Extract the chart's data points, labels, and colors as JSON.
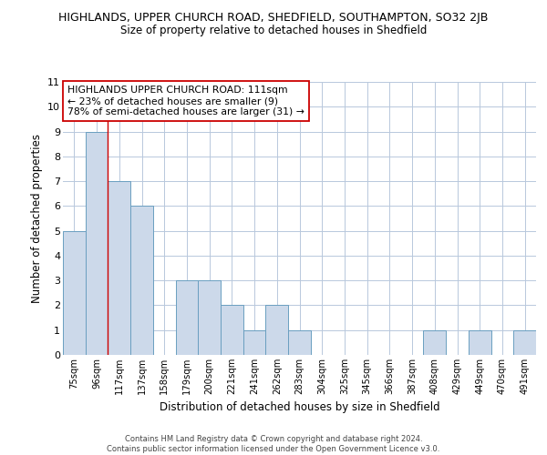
{
  "title_line1": "HIGHLANDS, UPPER CHURCH ROAD, SHEDFIELD, SOUTHAMPTON, SO32 2JB",
  "title_line2": "Size of property relative to detached houses in Shedfield",
  "xlabel": "Distribution of detached houses by size in Shedfield",
  "ylabel": "Number of detached properties",
  "categories": [
    "75sqm",
    "96sqm",
    "117sqm",
    "137sqm",
    "158sqm",
    "179sqm",
    "200sqm",
    "221sqm",
    "241sqm",
    "262sqm",
    "283sqm",
    "304sqm",
    "325sqm",
    "345sqm",
    "366sqm",
    "387sqm",
    "408sqm",
    "429sqm",
    "449sqm",
    "470sqm",
    "491sqm"
  ],
  "values": [
    5,
    9,
    7,
    6,
    0,
    3,
    3,
    2,
    1,
    2,
    1,
    0,
    0,
    0,
    0,
    0,
    1,
    0,
    1,
    0,
    1
  ],
  "bar_color": "#ccd9ea",
  "bar_edge_color": "#6a9fc0",
  "ylim": [
    0,
    11
  ],
  "yticks": [
    0,
    1,
    2,
    3,
    4,
    5,
    6,
    7,
    8,
    9,
    10,
    11
  ],
  "red_line_index": 2,
  "annotation_text": "HIGHLANDS UPPER CHURCH ROAD: 111sqm\n← 23% of detached houses are smaller (9)\n78% of semi-detached houses are larger (31) →",
  "annotation_box_color": "#ffffff",
  "annotation_border_color": "#cc0000",
  "footer_line1": "Contains HM Land Registry data © Crown copyright and database right 2024.",
  "footer_line2": "Contains public sector information licensed under the Open Government Licence v3.0.",
  "bg_color": "#ffffff",
  "grid_color": "#b8c8dc"
}
